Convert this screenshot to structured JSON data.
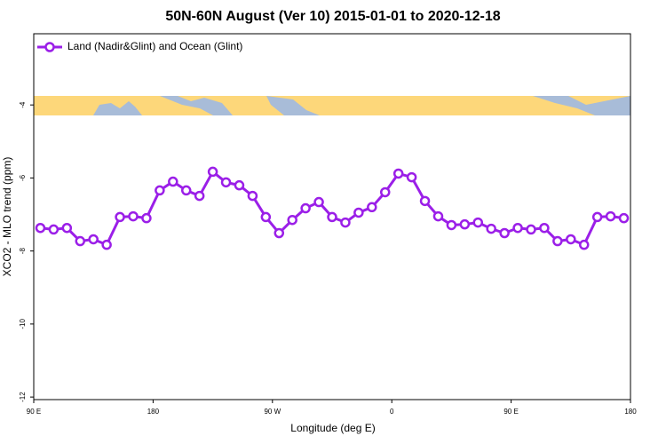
{
  "chart_data": {
    "type": "line",
    "title": "50N-60N August (Ver 10)   2015-01-01 to 2020-12-18",
    "x_label": "Longitude (deg E)",
    "y_label": "XCO2 - MLO trend (ppm)",
    "x": [
      95,
      105,
      115,
      125,
      135,
      145,
      155,
      165,
      175,
      185,
      195,
      205,
      215,
      225,
      235,
      245,
      255,
      265,
      275,
      285,
      295,
      305,
      315,
      325,
      335,
      345,
      355,
      365,
      375,
      385,
      395,
      405,
      415,
      425,
      435,
      445,
      455,
      465,
      475,
      485,
      495,
      505,
      515,
      525,
      535
    ],
    "series": [
      {
        "name": "Land (Nadir&Glint) and Ocean (Glint)",
        "color": "#9b1fe8",
        "values": [
          -7.37,
          -7.41,
          -7.37,
          -7.73,
          -7.68,
          -7.83,
          -7.07,
          -7.05,
          -7.1,
          -6.34,
          -6.1,
          -6.34,
          -6.49,
          -5.83,
          -6.12,
          -6.2,
          -6.49,
          -7.07,
          -7.51,
          -7.15,
          -6.83,
          -6.66,
          -7.07,
          -7.22,
          -6.95,
          -6.8,
          -6.39,
          -5.88,
          -5.98,
          -6.63,
          -7.05,
          -7.29,
          -7.27,
          -7.22,
          -7.39,
          -7.51,
          -7.37,
          -7.41,
          -7.37,
          -7.73,
          -7.68,
          -7.83,
          -7.07,
          -7.05,
          -7.1
        ]
      }
    ],
    "xlim": [
      90,
      540
    ],
    "xticks": [
      {
        "value": 90,
        "label": "90 E"
      },
      180,
      {
        "value": 270,
        "label": "90 W"
      },
      {
        "value": 360,
        "label": "0"
      },
      {
        "value": 450,
        "label": "90 E"
      },
      {
        "value": 540,
        "label": "180"
      }
    ],
    "ylim": [
      -12.07,
      -2.05
    ],
    "yticks": [
      -12,
      -10,
      -8,
      -6,
      -4
    ],
    "legend": "top-left"
  }
}
